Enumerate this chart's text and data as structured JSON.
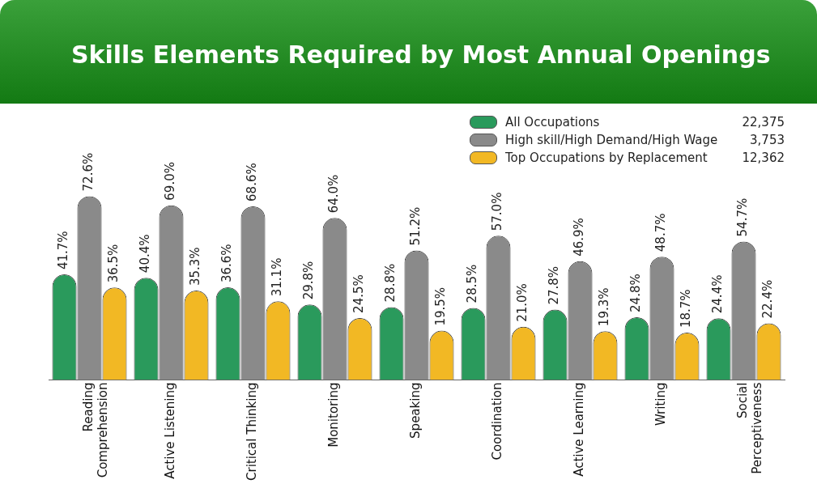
{
  "chart_data": {
    "type": "bar",
    "title": "Skills Elements Required by Most Annual Openings",
    "categories": [
      "Reading Comprehension",
      "Active Listening",
      "Critical Thinking",
      "Monitoring",
      "Speaking",
      "Coordination",
      "Active Learning",
      "Writing",
      "Social Perceptiveness"
    ],
    "series": [
      {
        "name": "All Occupations",
        "color": "#2a9a5c",
        "values": [
          41.7,
          40.4,
          36.6,
          29.8,
          28.8,
          28.5,
          27.8,
          24.8,
          24.4
        ],
        "value_labels": [
          "41.7%",
          "40.4%",
          "36.6%",
          "29.8%",
          "28.8%",
          "28.5%",
          "27.8%",
          "24.8%",
          "24.4%"
        ]
      },
      {
        "name": "High skill/High Demand/High Wage",
        "color": "#8a8a8a",
        "values": [
          72.6,
          69.0,
          68.6,
          64.0,
          51.2,
          57.0,
          46.9,
          48.7,
          54.7
        ],
        "value_labels": [
          "72.6%",
          "69.0%",
          "68.6%",
          "64.0%",
          "51.2%",
          "57.0%",
          "46.9%",
          "48.7%",
          "54.7%"
        ]
      },
      {
        "name": "Top Occupations by Replacement",
        "color": "#f2b824",
        "values": [
          36.5,
          35.3,
          31.1,
          24.5,
          19.5,
          21.0,
          19.3,
          18.7,
          22.4
        ],
        "value_labels": [
          "36.5%",
          "35.3%",
          "31.1%",
          "24.5%",
          "19.5%",
          "21.0%",
          "19.3%",
          "18.7%",
          "22.4%"
        ]
      }
    ],
    "annotations": [
      "22,375",
      "3,753",
      "12,362"
    ],
    "grid": false,
    "legend": "top right"
  }
}
